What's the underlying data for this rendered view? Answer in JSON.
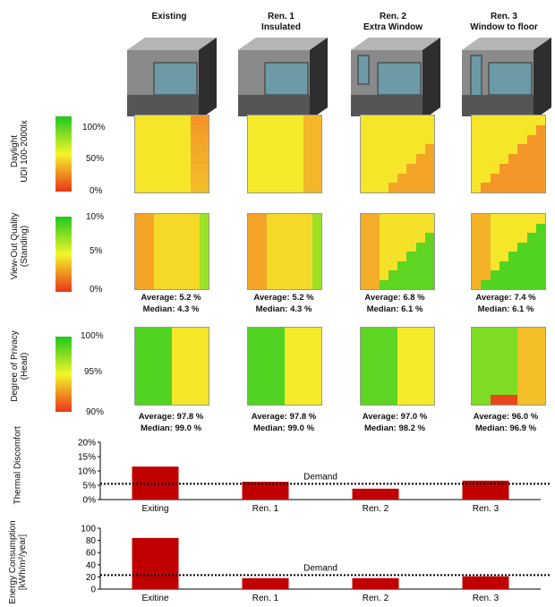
{
  "columns": [
    {
      "title": "Existing",
      "subtitle": ""
    },
    {
      "title": "Ren. 1",
      "subtitle": "Insulated"
    },
    {
      "title": "Ren. 2",
      "subtitle": "Extra Window"
    },
    {
      "title": "Ren. 3",
      "subtitle": "Window to floor"
    }
  ],
  "rows": [
    {
      "label_line1": "Daylight",
      "label_line2": "UDI 100-2000lx",
      "ticks": [
        "100%",
        "50%",
        "0%"
      ],
      "colors": {
        "high": "#1ec81e",
        "mid": "#f5f52a",
        "low": "#e8361a"
      },
      "stats": []
    },
    {
      "label_line1": "View-Out Quality",
      "label_line2": "(Standing)",
      "ticks": [
        "10%",
        "5%",
        "0%"
      ],
      "colors": {
        "high": "#1ec81e",
        "mid": "#f5f52a",
        "low": "#e8361a"
      },
      "stats": [
        {
          "average": "Average: 5.2 %",
          "median": "Median: 4.3 %"
        },
        {
          "average": "Average: 5.2 %",
          "median": "Median: 4.3 %"
        },
        {
          "average": "Average: 6.8 %",
          "median": "Median: 6.1 %"
        },
        {
          "average": "Average: 7.4 %",
          "median": "Median: 6.1 %"
        }
      ]
    },
    {
      "label_line1": "Degree of Privacy",
      "label_line2": "(Head)",
      "ticks": [
        "100%",
        "95%",
        "90%"
      ],
      "colors": {
        "high": "#1ec81e",
        "mid": "#f5f52a",
        "low": "#e8361a"
      },
      "stats": [
        {
          "average": "Average: 97.8 %",
          "median": "Median: 99.0 %"
        },
        {
          "average": "Average: 97.8 %",
          "median": "Median: 99.0 %"
        },
        {
          "average": "Average: 97.0 %",
          "median": "Median: 98.2 %"
        },
        {
          "average": "Average: 96.0 %",
          "median": "Median: 96.9 %"
        }
      ]
    }
  ],
  "chart_data": [
    {
      "type": "bar",
      "ylabel": "Thermal Discomfort",
      "categories": [
        "Exiting",
        "Ren. 1",
        "Ren. 2",
        "Ren. 3"
      ],
      "values": [
        11.5,
        6.2,
        3.8,
        6.6
      ],
      "ylim": [
        0,
        20
      ],
      "yticks": [
        0,
        5,
        10,
        15,
        20
      ],
      "ytick_labels": [
        "0%",
        "5%",
        "10%",
        "15%",
        "20%"
      ],
      "demand_value": 5.5,
      "demand_label": "Demand",
      "bar_color": "#c00000",
      "grid": false
    },
    {
      "type": "bar",
      "ylabel": "Energy Consumption",
      "ylabel2": "[kWh/m²/year]",
      "categories": [
        "Exitine",
        "Ren. 1",
        "Ren. 2",
        "Ren. 3"
      ],
      "values": [
        84,
        18,
        18,
        21
      ],
      "ylim": [
        0,
        100
      ],
      "yticks": [
        0,
        20,
        40,
        60,
        80,
        100
      ],
      "ytick_labels": [
        "0",
        "20",
        "40",
        "60",
        "80",
        "100"
      ],
      "demand_value": 23,
      "demand_label": "Demand",
      "bar_color": "#c00000",
      "grid": false
    }
  ]
}
